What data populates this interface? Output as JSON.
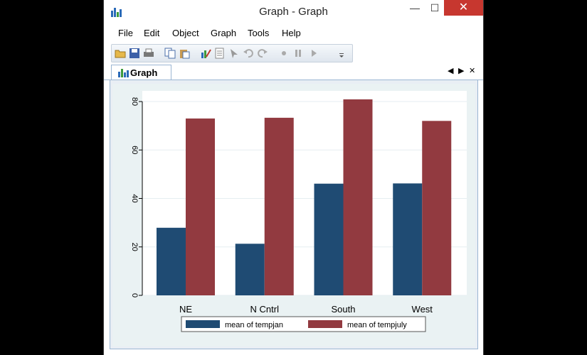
{
  "window": {
    "title": "Graph - Graph"
  },
  "titlebar_buttons": {
    "minimize": "—",
    "maximize": "☐",
    "close": "✕"
  },
  "menu": [
    "File",
    "Edit",
    "Object",
    "Graph",
    "Tools",
    "Help"
  ],
  "toolbar": {
    "icons": [
      "open-icon",
      "save-icon",
      "print-icon",
      "copy-icon",
      "paste-icon",
      "graph-editor-icon",
      "properties-icon",
      "pointer-icon",
      "undo-icon",
      "redo-icon",
      "record-icon",
      "pause-icon",
      "play-icon"
    ]
  },
  "tab": {
    "label": "Graph"
  },
  "tab_nav": {
    "prev": "◀",
    "next": "▶",
    "close": "✕"
  },
  "colors": {
    "series1": "#1f4b73",
    "series2": "#923a40",
    "plot_bg": "#ffffff",
    "graph_bg": "#eaf2f3"
  },
  "chart_data": {
    "type": "bar",
    "categories": [
      "NE",
      "N Cntrl",
      "South",
      "West"
    ],
    "series": [
      {
        "name": "mean of tempjan",
        "values": [
          27.9,
          21.3,
          46.1,
          46.2
        ]
      },
      {
        "name": "mean of tempjuly",
        "values": [
          73.0,
          73.3,
          80.9,
          72.0
        ]
      }
    ],
    "ylim": [
      0,
      80
    ],
    "yticks": [
      0,
      20,
      40,
      60,
      80
    ],
    "xlabel": "",
    "ylabel": "",
    "grid": true,
    "legend": "bottom"
  }
}
